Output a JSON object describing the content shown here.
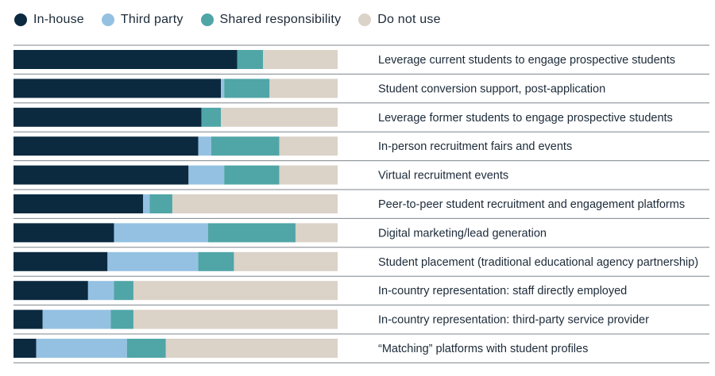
{
  "chart_data": {
    "type": "bar",
    "orientation": "horizontal",
    "stacked": true,
    "normalized": true,
    "legend_position": "top-left",
    "grid": false,
    "series": [
      {
        "name": "In-house",
        "color": "#0b2a40",
        "values": [
          69,
          64,
          58,
          57,
          54,
          40,
          31,
          29,
          23,
          9,
          7
        ]
      },
      {
        "name": "Third party",
        "color": "#94c1e2",
        "values": [
          0,
          1,
          0,
          4,
          11,
          2,
          29,
          28,
          8,
          21,
          28
        ]
      },
      {
        "name": "Shared responsibility",
        "color": "#50a5a7",
        "values": [
          8,
          14,
          6,
          21,
          17,
          7,
          27,
          11,
          6,
          7,
          12
        ]
      },
      {
        "name": "Do not use",
        "color": "#dbd2c8",
        "values": [
          23,
          21,
          36,
          18,
          18,
          51,
          13,
          32,
          63,
          63,
          53
        ]
      }
    ],
    "categories": [
      "Leverage current students to engage prospective students",
      "Student conversion support, post-application",
      "Leverage former students to engage prospective students",
      "In-person recruitment fairs and events",
      "Virtual recruitment events",
      "Peer-to-peer student recruitment and engagement platforms",
      "Digital marketing/lead generation",
      "Student placement (traditional educational agency partnership)",
      "In-country representation: staff directly employed",
      "In-country representation: third-party service provider",
      "“Matching” platforms with student profiles"
    ]
  }
}
